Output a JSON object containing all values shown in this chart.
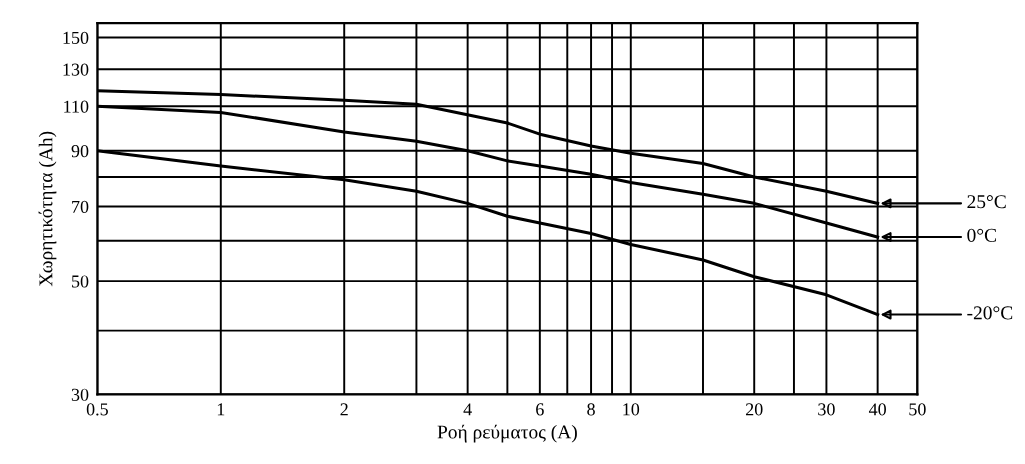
{
  "chart_data": {
    "type": "line",
    "xlabel": "Ροή ρεύματος (A)",
    "ylabel": "Χωρητικότητα (Ah)",
    "log": "xy",
    "grid": true,
    "legend": "right",
    "marker": "none",
    "line_style": "solid",
    "xlim": [
      0.5,
      50
    ],
    "ylim": [
      30,
      160
    ],
    "xticks": [
      0.5,
      1,
      2,
      {
        "value": 3,
        "label": null
      },
      4,
      {
        "value": 5,
        "label": null
      },
      6,
      {
        "value": 7,
        "label": null
      },
      8,
      {
        "value": 9,
        "label": null
      },
      10,
      {
        "value": 15,
        "label": null
      },
      20,
      {
        "value": 25,
        "label": null
      },
      30,
      40,
      50
    ],
    "yticks": [
      30,
      {
        "value": 40,
        "label": null
      },
      50,
      {
        "value": 60,
        "label": null
      },
      70,
      {
        "value": 80,
        "label": null
      },
      90,
      110,
      130,
      150
    ],
    "x": [
      0.5,
      1,
      2,
      3,
      5,
      6,
      8,
      10,
      15,
      20,
      30,
      40
    ],
    "series": [
      {
        "name": "25°C",
        "color": "#000000",
        "values": [
          118,
          116,
          113,
          111,
          102,
          97,
          92,
          89,
          85,
          80,
          75,
          71
        ]
      },
      {
        "name": "0°C",
        "color": "#000000",
        "x": [
          0.5,
          1,
          2,
          3,
          4,
          5,
          6,
          8,
          10,
          15,
          20,
          30,
          40
        ],
        "values": [
          110,
          107,
          98,
          94,
          90,
          86,
          84,
          81,
          78,
          74,
          71,
          65,
          61
        ]
      },
      {
        "name": "-20°C",
        "color": "#000000",
        "x": [
          0.5,
          1,
          2,
          3,
          4,
          5,
          6,
          8,
          10,
          15,
          20,
          30,
          40
        ],
        "values": [
          90,
          84,
          79,
          75,
          71,
          67,
          65,
          62,
          59,
          55,
          51,
          47,
          43
        ]
      }
    ]
  }
}
